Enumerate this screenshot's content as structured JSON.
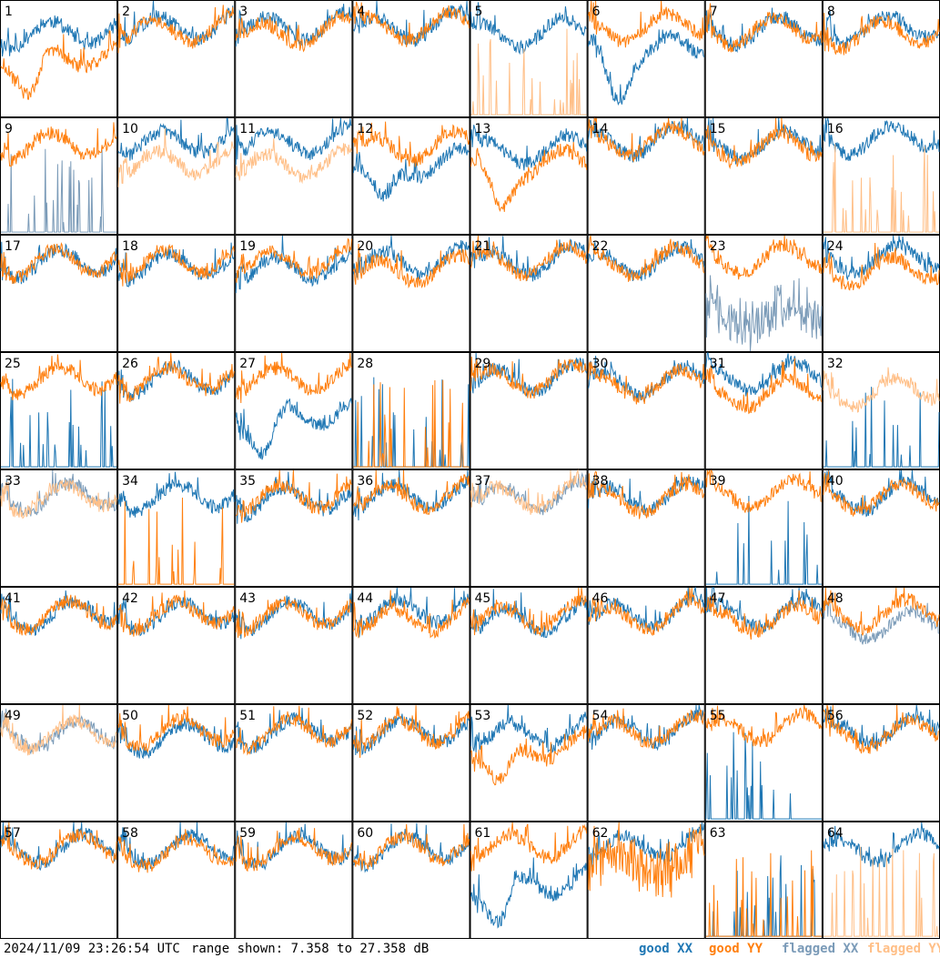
{
  "footer": {
    "timestamp": "2024/11/09 23:26:54 UTC",
    "range_text": "range shown: 7.358 to 27.358 dB"
  },
  "legend": [
    {
      "label": "good XX",
      "color": "#1f77b4"
    },
    {
      "label": "good YY",
      "color": "#ff7f0e"
    },
    {
      "label": "flagged XX",
      "color": "#7b9bb8"
    },
    {
      "label": "flagged YY",
      "color": "#ffbf87"
    }
  ],
  "chart_data": {
    "type": "line",
    "title": "",
    "xlabel": "",
    "ylabel": "",
    "ylim": [
      7.358,
      27.358
    ],
    "grid": "8x8 small multiples",
    "panels": [
      {
        "id": "1",
        "xx": "good",
        "yy": "good",
        "xx_level": 21,
        "yy_level": 17,
        "shape_xx": "normal",
        "shape_yy": "dip"
      },
      {
        "id": "2",
        "xx": "good",
        "yy": "good",
        "xx_level": 22,
        "yy_level": 21.5,
        "shape_xx": "normal",
        "shape_yy": "normal"
      },
      {
        "id": "3",
        "xx": "good",
        "yy": "good",
        "xx_level": 22,
        "yy_level": 21,
        "shape_xx": "normal",
        "shape_yy": "normal"
      },
      {
        "id": "4",
        "xx": "good",
        "yy": "good",
        "xx_level": 22,
        "yy_level": 22,
        "shape_xx": "normal",
        "shape_yy": "normal"
      },
      {
        "id": "5",
        "xx": "good",
        "yy": "flagged",
        "xx_level": 21,
        "yy_level": 9,
        "shape_xx": "normal",
        "shape_yy": "spikes"
      },
      {
        "id": "6",
        "xx": "good",
        "yy": "good",
        "xx_level": 18,
        "yy_level": 22,
        "shape_xx": "dip",
        "shape_yy": "normal"
      },
      {
        "id": "7",
        "xx": "good",
        "yy": "good",
        "xx_level": 21.5,
        "yy_level": 21.5,
        "shape_xx": "normal",
        "shape_yy": "normal"
      },
      {
        "id": "8",
        "xx": "good",
        "yy": "good",
        "xx_level": 22,
        "yy_level": 21,
        "shape_xx": "normal",
        "shape_yy": "normal"
      },
      {
        "id": "9",
        "xx": "flagged",
        "yy": "good",
        "xx_level": 9,
        "yy_level": 22,
        "shape_xx": "spikes",
        "shape_yy": "normal"
      },
      {
        "id": "10",
        "xx": "good",
        "yy": "flagged",
        "xx_level": 22.5,
        "yy_level": 19,
        "shape_xx": "normal",
        "shape_yy": "normal"
      },
      {
        "id": "11",
        "xx": "good",
        "yy": "flagged",
        "xx_level": 22.5,
        "yy_level": 18.5,
        "shape_xx": "normal",
        "shape_yy": "normal"
      },
      {
        "id": "12",
        "xx": "good",
        "yy": "good",
        "xx_level": 18.5,
        "yy_level": 21.5,
        "shape_xx": "dip",
        "shape_yy": "normal"
      },
      {
        "id": "13",
        "xx": "good",
        "yy": "good",
        "xx_level": 21,
        "yy_level": 18.5,
        "shape_xx": "normal",
        "shape_yy": "dip"
      },
      {
        "id": "14",
        "xx": "good",
        "yy": "good",
        "xx_level": 22.5,
        "yy_level": 22.5,
        "shape_xx": "normal",
        "shape_yy": "normal"
      },
      {
        "id": "15",
        "xx": "good",
        "yy": "good",
        "xx_level": 22,
        "yy_level": 21.5,
        "shape_xx": "normal",
        "shape_yy": "normal"
      },
      {
        "id": "16",
        "xx": "good",
        "yy": "flagged",
        "xx_level": 23,
        "yy_level": 9,
        "shape_xx": "normal",
        "shape_yy": "spikes"
      },
      {
        "id": "17",
        "xx": "good",
        "yy": "good",
        "xx_level": 22,
        "yy_level": 22,
        "shape_xx": "normal",
        "shape_yy": "normal"
      },
      {
        "id": "18",
        "xx": "good",
        "yy": "good",
        "xx_level": 21.5,
        "yy_level": 22,
        "shape_xx": "normal",
        "shape_yy": "normal"
      },
      {
        "id": "19",
        "xx": "good",
        "yy": "good",
        "xx_level": 21,
        "yy_level": 22,
        "shape_xx": "normal",
        "shape_yy": "normal"
      },
      {
        "id": "20",
        "xx": "good",
        "yy": "good",
        "xx_level": 22,
        "yy_level": 20.5,
        "shape_xx": "normal",
        "shape_yy": "normal"
      },
      {
        "id": "21",
        "xx": "good",
        "yy": "good",
        "xx_level": 22,
        "yy_level": 22,
        "shape_xx": "normal",
        "shape_yy": "normal"
      },
      {
        "id": "22",
        "xx": "good",
        "yy": "good",
        "xx_level": 22,
        "yy_level": 22,
        "shape_xx": "normal",
        "shape_yy": "normal"
      },
      {
        "id": "23",
        "xx": "flagged",
        "yy": "good",
        "xx_level": 13,
        "yy_level": 22.5,
        "shape_xx": "noisy",
        "shape_yy": "normal"
      },
      {
        "id": "24",
        "xx": "good",
        "yy": "good",
        "xx_level": 22.5,
        "yy_level": 20.5,
        "shape_xx": "normal",
        "shape_yy": "normal"
      },
      {
        "id": "25",
        "xx": "good",
        "yy": "good",
        "xx_level": 9,
        "yy_level": 22,
        "shape_xx": "spikes",
        "shape_yy": "normal"
      },
      {
        "id": "26",
        "xx": "good",
        "yy": "good",
        "xx_level": 22,
        "yy_level": 22,
        "shape_xx": "normal",
        "shape_yy": "normal"
      },
      {
        "id": "27",
        "xx": "good",
        "yy": "good",
        "xx_level": 16,
        "yy_level": 22,
        "shape_xx": "dip",
        "shape_yy": "normal"
      },
      {
        "id": "28",
        "xx": "good",
        "yy": "good",
        "xx_level": 9,
        "yy_level": 9,
        "shape_xx": "spikes",
        "shape_yy": "spikes"
      },
      {
        "id": "29",
        "xx": "good",
        "yy": "good",
        "xx_level": 22,
        "yy_level": 22,
        "shape_xx": "normal",
        "shape_yy": "normal"
      },
      {
        "id": "30",
        "xx": "good",
        "yy": "good",
        "xx_level": 21.5,
        "yy_level": 21,
        "shape_xx": "normal",
        "shape_yy": "normal"
      },
      {
        "id": "31",
        "xx": "good",
        "yy": "good",
        "xx_level": 22.5,
        "yy_level": 19.5,
        "shape_xx": "normal",
        "shape_yy": "normal"
      },
      {
        "id": "32",
        "xx": "good",
        "yy": "flagged",
        "xx_level": 9,
        "yy_level": 20,
        "shape_xx": "spikes",
        "shape_yy": "normal"
      },
      {
        "id": "33",
        "xx": "flagged",
        "yy": "flagged",
        "xx_level": 22,
        "yy_level": 22,
        "shape_xx": "normal",
        "shape_yy": "normal"
      },
      {
        "id": "34",
        "xx": "good",
        "yy": "good",
        "xx_level": 22,
        "yy_level": 9,
        "shape_xx": "normal",
        "shape_yy": "spikes"
      },
      {
        "id": "35",
        "xx": "good",
        "yy": "good",
        "xx_level": 21.5,
        "yy_level": 22,
        "shape_xx": "normal",
        "shape_yy": "normal"
      },
      {
        "id": "36",
        "xx": "good",
        "yy": "good",
        "xx_level": 22,
        "yy_level": 22,
        "shape_xx": "normal",
        "shape_yy": "normal"
      },
      {
        "id": "37",
        "xx": "flagged",
        "yy": "flagged",
        "xx_level": 22,
        "yy_level": 22,
        "shape_xx": "normal",
        "shape_yy": "normal"
      },
      {
        "id": "38",
        "xx": "good",
        "yy": "good",
        "xx_level": 22,
        "yy_level": 21.5,
        "shape_xx": "normal",
        "shape_yy": "normal"
      },
      {
        "id": "39",
        "xx": "good",
        "yy": "good",
        "xx_level": 9,
        "yy_level": 22.5,
        "shape_xx": "spikes",
        "shape_yy": "normal"
      },
      {
        "id": "40",
        "xx": "good",
        "yy": "good",
        "xx_level": 22,
        "yy_level": 22,
        "shape_xx": "normal",
        "shape_yy": "normal"
      },
      {
        "id": "41",
        "xx": "good",
        "yy": "good",
        "xx_level": 22,
        "yy_level": 22,
        "shape_xx": "normal",
        "shape_yy": "normal"
      },
      {
        "id": "42",
        "xx": "good",
        "yy": "good",
        "xx_level": 22,
        "yy_level": 22,
        "shape_xx": "normal",
        "shape_yy": "normal"
      },
      {
        "id": "43",
        "xx": "good",
        "yy": "good",
        "xx_level": 22,
        "yy_level": 22,
        "shape_xx": "normal",
        "shape_yy": "normal"
      },
      {
        "id": "44",
        "xx": "good",
        "yy": "good",
        "xx_level": 22.5,
        "yy_level": 21,
        "shape_xx": "normal",
        "shape_yy": "normal"
      },
      {
        "id": "45",
        "xx": "good",
        "yy": "good",
        "xx_level": 21,
        "yy_level": 21.5,
        "shape_xx": "normal",
        "shape_yy": "normal"
      },
      {
        "id": "46",
        "xx": "good",
        "yy": "good",
        "xx_level": 22,
        "yy_level": 21.5,
        "shape_xx": "normal",
        "shape_yy": "normal"
      },
      {
        "id": "47",
        "xx": "good",
        "yy": "good",
        "xx_level": 22,
        "yy_level": 21,
        "shape_xx": "normal",
        "shape_yy": "normal"
      },
      {
        "id": "48",
        "xx": "flagged",
        "yy": "good",
        "xx_level": 20,
        "yy_level": 22,
        "shape_xx": "normal",
        "shape_yy": "normal"
      },
      {
        "id": "49",
        "xx": "flagged",
        "yy": "flagged",
        "xx_level": 21.5,
        "yy_level": 21.5,
        "shape_xx": "normal",
        "shape_yy": "normal"
      },
      {
        "id": "50",
        "xx": "good",
        "yy": "good",
        "xx_level": 21,
        "yy_level": 22,
        "shape_xx": "normal",
        "shape_yy": "normal"
      },
      {
        "id": "51",
        "xx": "good",
        "yy": "good",
        "xx_level": 22,
        "yy_level": 22,
        "shape_xx": "normal",
        "shape_yy": "normal"
      },
      {
        "id": "52",
        "xx": "good",
        "yy": "good",
        "xx_level": 22,
        "yy_level": 22,
        "shape_xx": "normal",
        "shape_yy": "normal"
      },
      {
        "id": "53",
        "xx": "good",
        "yy": "good",
        "xx_level": 21.5,
        "yy_level": 19,
        "shape_xx": "normal",
        "shape_yy": "dip"
      },
      {
        "id": "54",
        "xx": "good",
        "yy": "good",
        "xx_level": 22,
        "yy_level": 22,
        "shape_xx": "normal",
        "shape_yy": "normal"
      },
      {
        "id": "55",
        "xx": "good",
        "yy": "good",
        "xx_level": 9,
        "yy_level": 22.5,
        "shape_xx": "spikes",
        "shape_yy": "normal"
      },
      {
        "id": "56",
        "xx": "good",
        "yy": "good",
        "xx_level": 22,
        "yy_level": 21.5,
        "shape_xx": "normal",
        "shape_yy": "normal"
      },
      {
        "id": "57",
        "xx": "good",
        "yy": "good",
        "xx_level": 22,
        "yy_level": 22,
        "shape_xx": "normal",
        "shape_yy": "normal"
      },
      {
        "id": "58",
        "xx": "good",
        "yy": "good",
        "xx_level": 22,
        "yy_level": 21.5,
        "shape_xx": "normal",
        "shape_yy": "normal"
      },
      {
        "id": "59",
        "xx": "good",
        "yy": "good",
        "xx_level": 22,
        "yy_level": 22,
        "shape_xx": "normal",
        "shape_yy": "normal"
      },
      {
        "id": "60",
        "xx": "good",
        "yy": "good",
        "xx_level": 22,
        "yy_level": 22,
        "shape_xx": "normal",
        "shape_yy": "normal"
      },
      {
        "id": "61",
        "xx": "good",
        "yy": "good",
        "xx_level": 16,
        "yy_level": 22.5,
        "shape_xx": "dip",
        "shape_yy": "normal"
      },
      {
        "id": "62",
        "xx": "good",
        "yy": "good",
        "xx_level": 22.5,
        "yy_level": 19.5,
        "shape_xx": "normal",
        "shape_yy": "noisy"
      },
      {
        "id": "63",
        "xx": "good",
        "yy": "good",
        "xx_level": 9,
        "yy_level": 9,
        "shape_xx": "spikes",
        "shape_yy": "spikes"
      },
      {
        "id": "64",
        "xx": "good",
        "yy": "flagged",
        "xx_level": 22,
        "yy_level": 9,
        "shape_xx": "normal",
        "shape_yy": "spikes"
      }
    ]
  }
}
